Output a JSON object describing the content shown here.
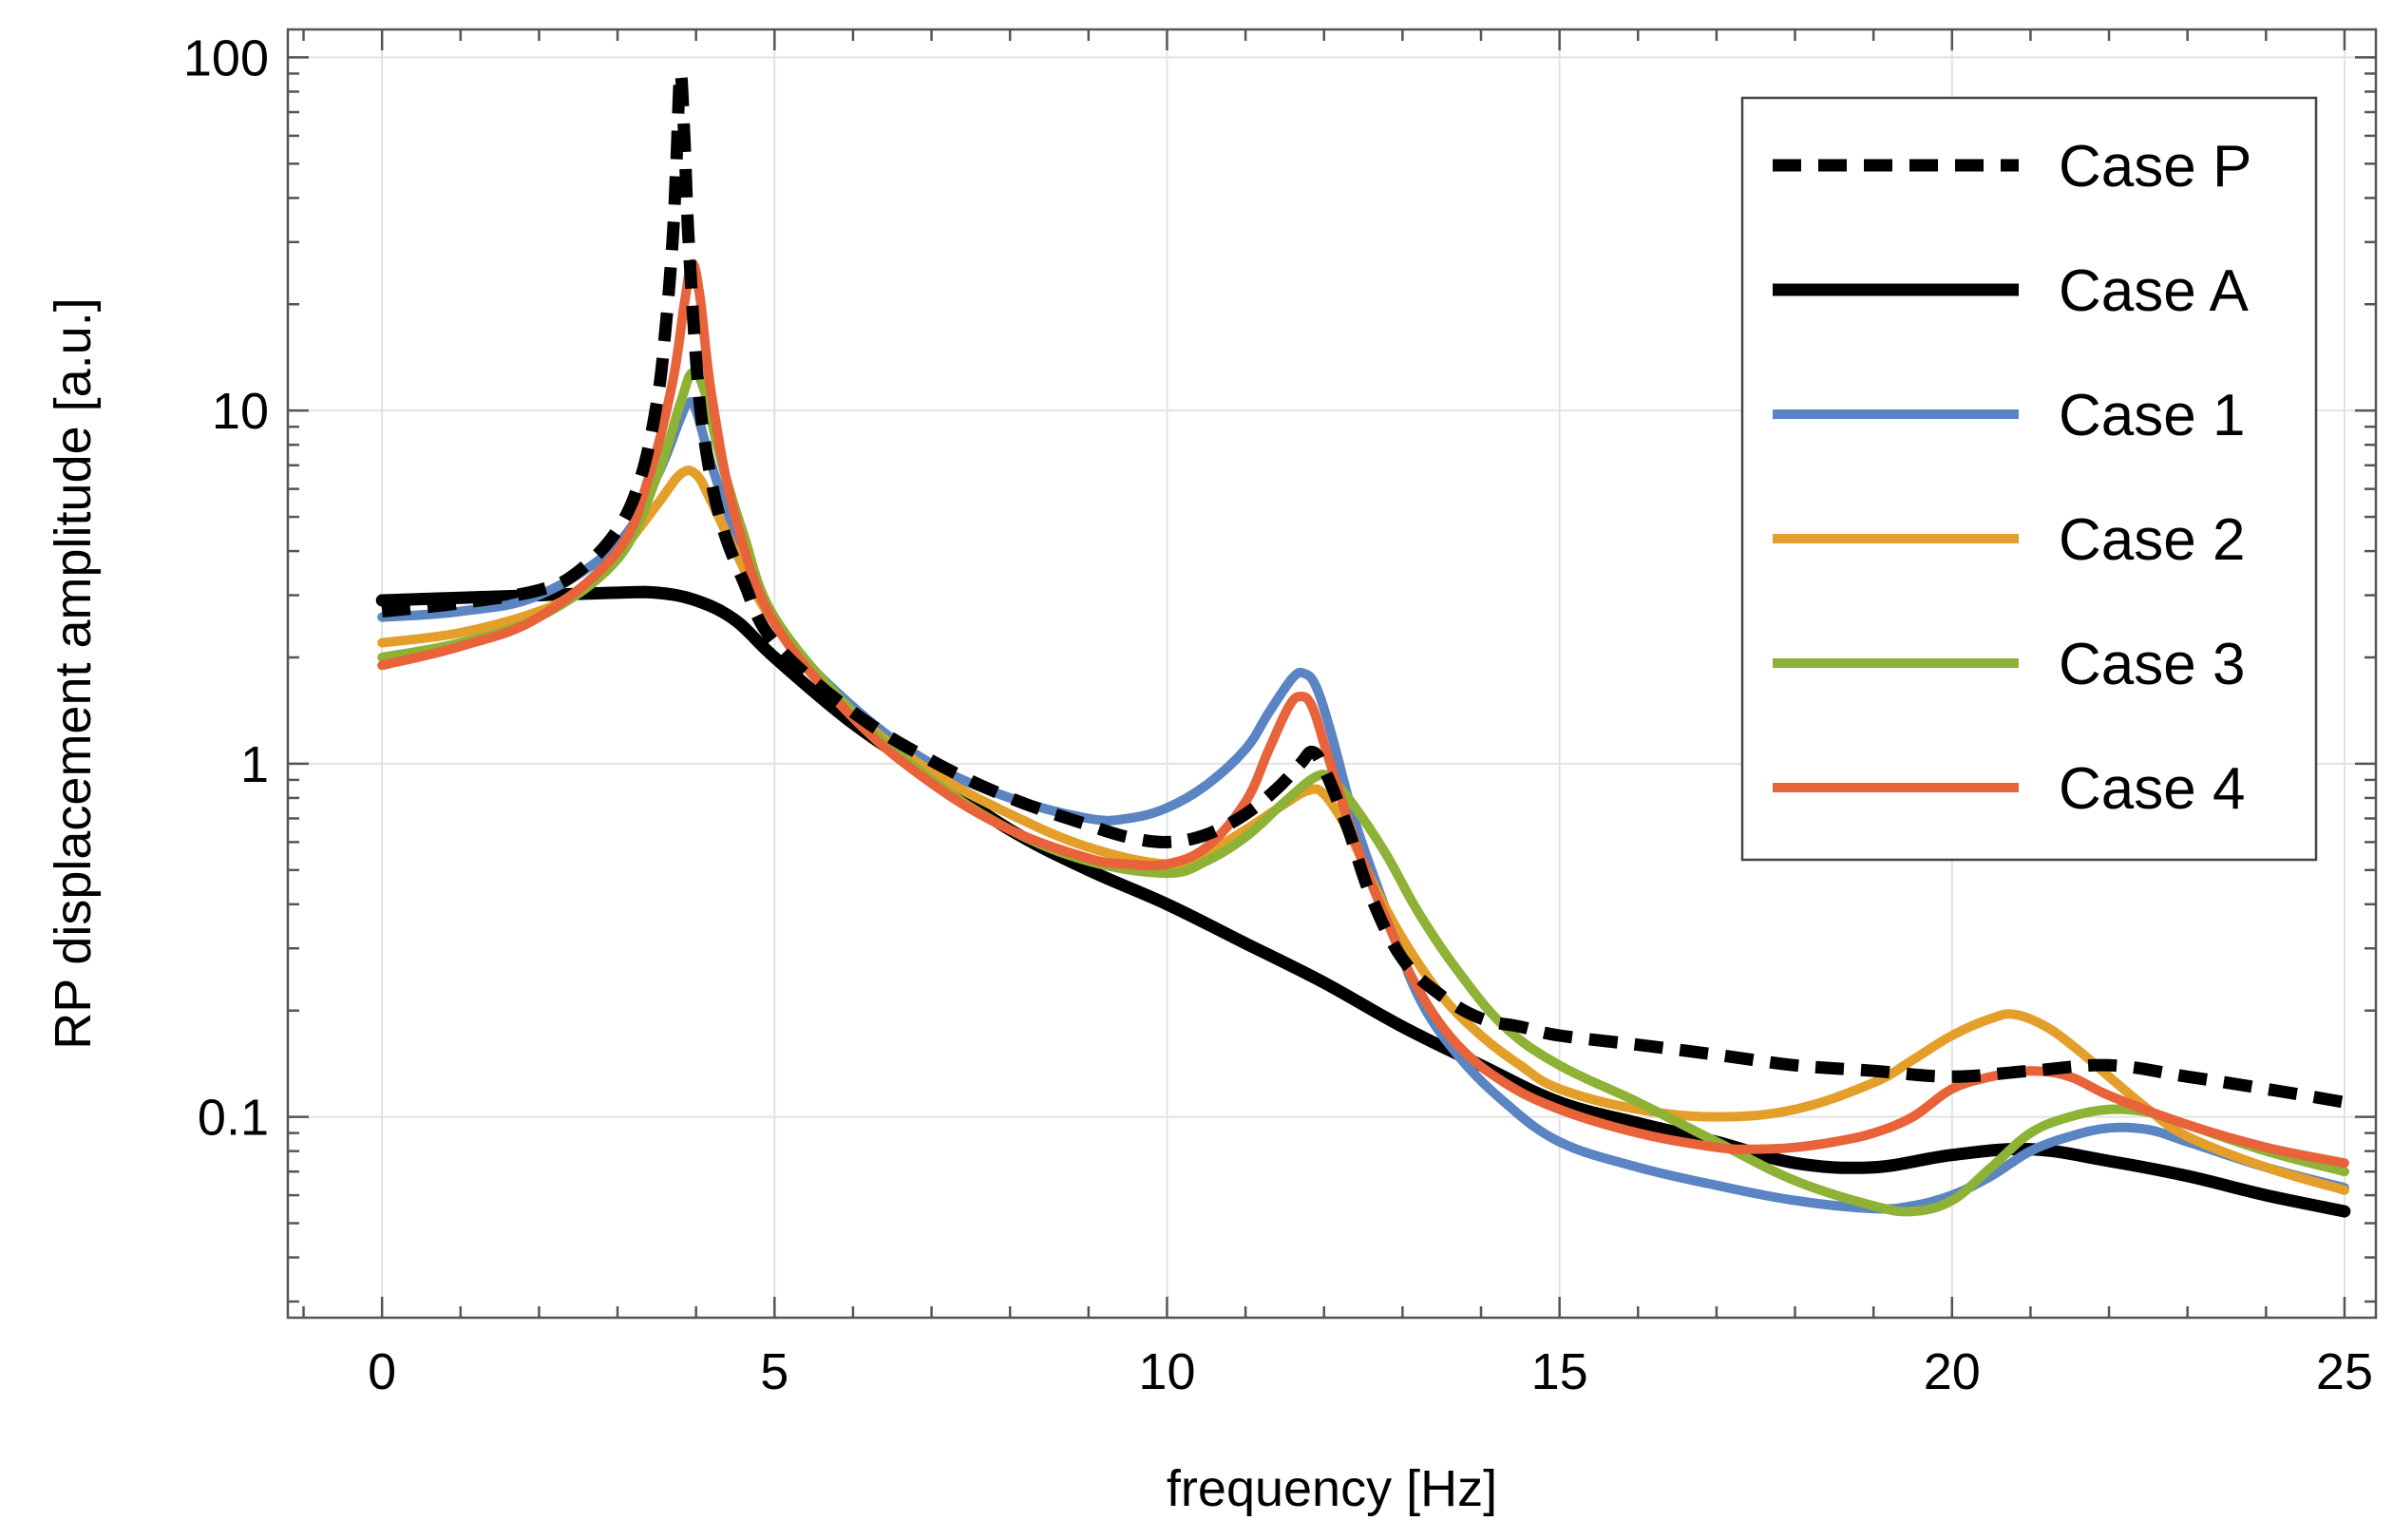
{
  "chart_data": {
    "type": "line",
    "title": "",
    "xlabel": "frequency [Hz]",
    "ylabel": "RP displacement amplitude [a.u.]",
    "xlim": [
      -1.2,
      25.4
    ],
    "ylim": [
      0.027,
      120
    ],
    "yscale": "log",
    "grid": true,
    "legend_position": "top-right",
    "x_ticks": [
      {
        "value": 0,
        "label": "0"
      },
      {
        "value": 5,
        "label": "5"
      },
      {
        "value": 10,
        "label": "10"
      },
      {
        "value": 15,
        "label": "15"
      },
      {
        "value": 20,
        "label": "20"
      },
      {
        "value": 25,
        "label": "25"
      }
    ],
    "y_ticks": [
      {
        "value": 0.1,
        "label": "0.1"
      },
      {
        "value": 1,
        "label": "1"
      },
      {
        "value": 10,
        "label": "10"
      },
      {
        "value": 100,
        "label": "100"
      }
    ],
    "series": [
      {
        "name": "Case P",
        "color": "#000000",
        "dashed": true,
        "width": 13,
        "x": [
          0,
          1,
          2,
          2.5,
          3,
          3.3,
          3.5,
          3.6,
          3.7,
          3.75,
          3.8,
          3.85,
          3.9,
          4.0,
          4.1,
          4.3,
          4.6,
          5,
          6,
          7,
          8,
          9,
          9.5,
          10,
          10.5,
          11,
          11.4,
          11.7,
          11.85,
          12,
          12.3,
          12.6,
          13,
          13.5,
          14,
          14.5,
          15,
          16,
          17,
          18,
          19,
          20,
          21,
          22,
          23,
          24,
          25
        ],
        "y": [
          2.7,
          2.85,
          3.1,
          3.5,
          4.6,
          6.5,
          10.5,
          16,
          30,
          50,
          90,
          60,
          32,
          14,
          8.5,
          5,
          3.3,
          2.2,
          1.4,
          1.02,
          0.8,
          0.67,
          0.62,
          0.6,
          0.63,
          0.72,
          0.85,
          1.0,
          1.08,
          0.97,
          0.66,
          0.42,
          0.28,
          0.22,
          0.19,
          0.18,
          0.17,
          0.16,
          0.15,
          0.14,
          0.135,
          0.13,
          0.135,
          0.14,
          0.13,
          0.12,
          0.11
        ]
      },
      {
        "name": "Case A",
        "color": "#000000",
        "dashed": false,
        "width": 13,
        "x": [
          0,
          1,
          2,
          3,
          3.5,
          4,
          4.5,
          5,
          6,
          7,
          8,
          9,
          10,
          11,
          12,
          13,
          14,
          15,
          16,
          17,
          18,
          19,
          20,
          21,
          22,
          23,
          24,
          25
        ],
        "y": [
          2.9,
          2.95,
          3.0,
          3.05,
          3.05,
          2.9,
          2.55,
          2.0,
          1.3,
          0.92,
          0.65,
          0.5,
          0.4,
          0.31,
          0.24,
          0.18,
          0.14,
          0.11,
          0.096,
          0.085,
          0.074,
          0.072,
          0.078,
          0.081,
          0.075,
          0.068,
          0.06,
          0.054
        ]
      },
      {
        "name": "Case 1",
        "color": "#5b84c2",
        "dashed": false,
        "width": 10,
        "x": [
          0,
          1,
          2,
          3,
          3.5,
          3.8,
          3.9,
          4.0,
          4.2,
          4.5,
          5,
          6,
          7,
          8,
          9,
          9.5,
          10,
          10.5,
          11,
          11.3,
          11.6,
          11.75,
          11.9,
          12.1,
          12.4,
          12.8,
          13.2,
          13.7,
          14.3,
          15,
          16,
          17,
          18,
          19,
          19.5,
          20,
          20.5,
          21,
          21.5,
          22,
          22.5,
          23,
          24,
          25
        ],
        "y": [
          2.6,
          2.7,
          3.0,
          4.2,
          6.5,
          9.5,
          10.5,
          10.0,
          7.0,
          4.5,
          2.5,
          1.45,
          1.0,
          0.8,
          0.7,
          0.7,
          0.75,
          0.87,
          1.1,
          1.4,
          1.75,
          1.8,
          1.65,
          1.2,
          0.68,
          0.38,
          0.22,
          0.15,
          0.11,
          0.085,
          0.072,
          0.064,
          0.058,
          0.055,
          0.056,
          0.06,
          0.068,
          0.08,
          0.088,
          0.093,
          0.092,
          0.085,
          0.072,
          0.063
        ]
      },
      {
        "name": "Case 2",
        "color": "#e39f29",
        "dashed": false,
        "width": 10,
        "x": [
          0,
          1,
          2,
          2.5,
          3,
          3.5,
          3.8,
          4.0,
          4.2,
          4.5,
          5,
          6,
          7,
          8,
          9,
          10,
          10.5,
          11,
          11.5,
          11.8,
          12,
          12.3,
          12.6,
          13,
          13.5,
          14,
          14.5,
          15,
          16,
          17,
          18,
          19,
          19.5,
          20,
          20.5,
          20.8,
          21.2,
          21.6,
          22,
          22.5,
          23,
          24,
          25
        ],
        "y": [
          2.2,
          2.35,
          2.7,
          3.1,
          3.9,
          5.4,
          6.6,
          6.6,
          5.5,
          4.0,
          2.5,
          1.4,
          0.95,
          0.72,
          0.58,
          0.52,
          0.56,
          0.65,
          0.77,
          0.84,
          0.82,
          0.65,
          0.47,
          0.32,
          0.22,
          0.17,
          0.14,
          0.12,
          0.105,
          0.1,
          0.105,
          0.125,
          0.145,
          0.17,
          0.19,
          0.195,
          0.18,
          0.155,
          0.13,
          0.105,
          0.088,
          0.072,
          0.062
        ]
      },
      {
        "name": "Case 3",
        "color": "#8eb236",
        "dashed": false,
        "width": 10,
        "x": [
          0,
          1,
          2,
          3,
          3.5,
          3.8,
          3.95,
          4.1,
          4.3,
          4.6,
          5,
          6,
          7,
          8,
          9,
          10,
          10.5,
          11,
          11.5,
          11.9,
          12.1,
          12.4,
          12.8,
          13.2,
          13.7,
          14.3,
          15,
          16,
          17,
          18,
          19,
          19.5,
          20,
          20.5,
          21,
          21.5,
          22,
          22.5,
          23,
          24,
          25
        ],
        "y": [
          2.0,
          2.2,
          2.6,
          3.8,
          6.5,
          10.5,
          12.8,
          11.5,
          7.5,
          4.5,
          2.6,
          1.4,
          0.9,
          0.65,
          0.53,
          0.49,
          0.53,
          0.62,
          0.78,
          0.92,
          0.9,
          0.75,
          0.55,
          0.38,
          0.26,
          0.18,
          0.14,
          0.11,
          0.085,
          0.066,
          0.056,
          0.054,
          0.058,
          0.072,
          0.09,
          0.1,
          0.105,
          0.103,
          0.095,
          0.08,
          0.07
        ]
      },
      {
        "name": "Case 4",
        "color": "#e8623a",
        "dashed": false,
        "width": 10,
        "x": [
          0,
          1,
          2,
          3,
          3.4,
          3.7,
          3.85,
          3.95,
          4.05,
          4.2,
          4.5,
          5,
          6,
          7,
          8,
          9,
          9.5,
          10,
          10.5,
          11,
          11.3,
          11.55,
          11.7,
          11.85,
          12.05,
          12.4,
          12.8,
          13.2,
          13.7,
          14.3,
          15,
          16,
          17,
          17.5,
          18,
          18.5,
          19,
          19.5,
          20,
          20.5,
          21,
          21.5,
          22,
          23,
          24,
          25
        ],
        "y": [
          1.9,
          2.15,
          2.6,
          4.0,
          6.5,
          12,
          20,
          26,
          21,
          11,
          5.0,
          2.5,
          1.35,
          0.88,
          0.65,
          0.54,
          0.52,
          0.52,
          0.58,
          0.78,
          1.1,
          1.45,
          1.55,
          1.45,
          1.05,
          0.6,
          0.36,
          0.23,
          0.16,
          0.125,
          0.105,
          0.09,
          0.082,
          0.081,
          0.082,
          0.085,
          0.09,
          0.1,
          0.12,
          0.13,
          0.135,
          0.13,
          0.115,
          0.095,
          0.082,
          0.074
        ]
      }
    ]
  }
}
